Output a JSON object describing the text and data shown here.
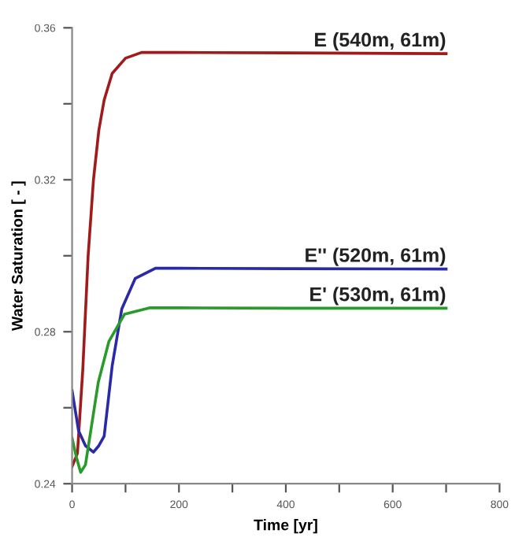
{
  "chart_data": {
    "type": "line",
    "xlabel": "Time [yr]",
    "ylabel": "Water Saturation [ - ]",
    "xlim": [
      0,
      800
    ],
    "ylim": [
      0.24,
      0.36
    ],
    "xticks": [
      0,
      {
        "value": 100,
        "label": null
      },
      200,
      {
        "value": 300,
        "label": null
      },
      400,
      {
        "value": 500,
        "label": null
      },
      600,
      {
        "value": 700,
        "label": null
      },
      800
    ],
    "yticks": [
      0.24,
      {
        "value": 0.26,
        "label": null
      },
      0.28,
      {
        "value": 0.3,
        "label": null
      },
      0.32,
      {
        "value": 0.34,
        "label": null
      },
      0.36
    ],
    "grid": false,
    "legend": false,
    "marker": "none",
    "line_style": "solid",
    "series": [
      {
        "name": "E (540m, 61m)",
        "color": "#a01c1c",
        "x": [
          0,
          10,
          20,
          30,
          40,
          50,
          60,
          75,
          100,
          130,
          200,
          400,
          700
        ],
        "values": [
          0.2445,
          0.248,
          0.27,
          0.3,
          0.32,
          0.333,
          0.341,
          0.348,
          0.352,
          0.3535,
          0.3535,
          0.3534,
          0.3532
        ]
      },
      {
        "name": "E'' (520m, 61m)",
        "color": "#2a2aa8",
        "x": [
          0,
          12,
          25,
          40,
          50,
          60,
          75,
          93,
          118,
          156,
          200,
          400,
          700
        ],
        "values": [
          0.2645,
          0.254,
          0.25,
          0.2483,
          0.25,
          0.2525,
          0.271,
          0.286,
          0.294,
          0.2967,
          0.2967,
          0.2966,
          0.2965
        ]
      },
      {
        "name": "E' (530m, 61m)",
        "color": "#2a9a2a",
        "x": [
          0,
          8,
          16,
          25,
          35,
          49,
          69,
          98,
          146,
          200,
          400,
          700
        ],
        "values": [
          0.252,
          0.247,
          0.243,
          0.245,
          0.254,
          0.2667,
          0.2775,
          0.2846,
          0.2863,
          0.2863,
          0.2862,
          0.2862
        ]
      }
    ]
  }
}
